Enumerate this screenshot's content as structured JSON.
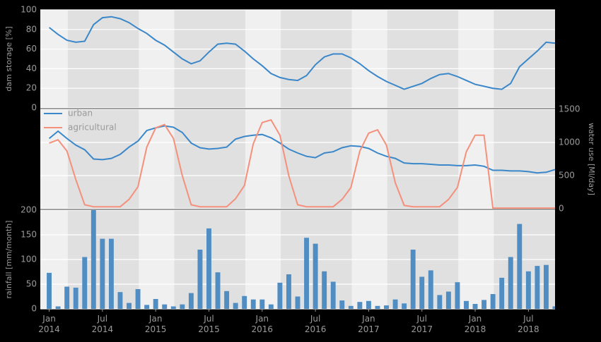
{
  "chart_data": [
    {
      "type": "line",
      "y_label": "dam storage [%]",
      "x": [
        "2014-01",
        "2014-02",
        "2014-03",
        "2014-04",
        "2014-05",
        "2014-06",
        "2014-07",
        "2014-08",
        "2014-09",
        "2014-10",
        "2014-11",
        "2014-12",
        "2015-01",
        "2015-02",
        "2015-03",
        "2015-04",
        "2015-05",
        "2015-06",
        "2015-07",
        "2015-08",
        "2015-09",
        "2015-10",
        "2015-11",
        "2015-12",
        "2016-01",
        "2016-02",
        "2016-03",
        "2016-04",
        "2016-05",
        "2016-06",
        "2016-07",
        "2016-08",
        "2016-09",
        "2016-10",
        "2016-11",
        "2016-12",
        "2017-01",
        "2017-02",
        "2017-03",
        "2017-04",
        "2017-05",
        "2017-06",
        "2017-07",
        "2017-08",
        "2017-09",
        "2017-10",
        "2017-11",
        "2017-12",
        "2018-01",
        "2018-02",
        "2018-03",
        "2018-04",
        "2018-05",
        "2018-06",
        "2018-07",
        "2018-08",
        "2018-09",
        "2018-10"
      ],
      "values": [
        82,
        75,
        69,
        67,
        68,
        85,
        92,
        93,
        91,
        87,
        81,
        76,
        69,
        64,
        57,
        50,
        45,
        48,
        57,
        65,
        66,
        65,
        58,
        50,
        43,
        35,
        31,
        29,
        28,
        33,
        44,
        52,
        55,
        55,
        51,
        45,
        38,
        32,
        27,
        23,
        19,
        22,
        25,
        30,
        34,
        35,
        32,
        28,
        24,
        22,
        20,
        19,
        25,
        42,
        50,
        58,
        67,
        66
      ],
      "color": "#3a87c9",
      "xlim": [
        "2013-12",
        "2018-10"
      ],
      "ylim": [
        0,
        100
      ],
      "yticks": [
        0,
        20,
        40,
        60,
        80,
        100
      ],
      "grid": true
    },
    {
      "type": "line",
      "y2_label": "water use [Ml/day]",
      "x": [
        "2014-01",
        "2014-02",
        "2014-03",
        "2014-04",
        "2014-05",
        "2014-06",
        "2014-07",
        "2014-08",
        "2014-09",
        "2014-10",
        "2014-11",
        "2014-12",
        "2015-01",
        "2015-02",
        "2015-03",
        "2015-04",
        "2015-05",
        "2015-06",
        "2015-07",
        "2015-08",
        "2015-09",
        "2015-10",
        "2015-11",
        "2015-12",
        "2016-01",
        "2016-02",
        "2016-03",
        "2016-04",
        "2016-05",
        "2016-06",
        "2016-07",
        "2016-08",
        "2016-09",
        "2016-10",
        "2016-11",
        "2016-12",
        "2017-01",
        "2017-02",
        "2017-03",
        "2017-04",
        "2017-05",
        "2017-06",
        "2017-07",
        "2017-08",
        "2017-09",
        "2017-10",
        "2017-11",
        "2017-12",
        "2018-01",
        "2018-02",
        "2018-03",
        "2018-04",
        "2018-05",
        "2018-06",
        "2018-07",
        "2018-08",
        "2018-09",
        "2018-10"
      ],
      "series": [
        {
          "name": "urban",
          "color": "#3a87c9",
          "axis": "y2",
          "values": [
            1060,
            1170,
            1060,
            960,
            890,
            750,
            740,
            760,
            820,
            930,
            1020,
            1180,
            1220,
            1250,
            1230,
            1150,
            990,
            920,
            900,
            910,
            930,
            1050,
            1090,
            1110,
            1120,
            1070,
            990,
            900,
            840,
            790,
            770,
            840,
            860,
            920,
            950,
            940,
            910,
            840,
            790,
            760,
            690,
            680,
            680,
            670,
            660,
            660,
            650,
            650,
            660,
            640,
            580,
            580,
            570,
            570,
            560,
            540,
            550,
            590
          ]
        },
        {
          "name": "agricultural",
          "color": "#f4907c",
          "axis": "y2",
          "values": [
            990,
            1040,
            870,
            440,
            60,
            30,
            30,
            30,
            30,
            140,
            330,
            930,
            1220,
            1270,
            1060,
            500,
            60,
            30,
            30,
            30,
            30,
            150,
            350,
            980,
            1300,
            1340,
            1110,
            500,
            60,
            30,
            30,
            30,
            30,
            140,
            320,
            870,
            1140,
            1190,
            960,
            390,
            50,
            30,
            30,
            30,
            30,
            140,
            320,
            860,
            1110,
            1110,
            10,
            10,
            10,
            10,
            10,
            10,
            10,
            10
          ]
        }
      ],
      "legend": "upper left",
      "xlim": [
        "2013-12",
        "2018-10"
      ],
      "y2lim": [
        0,
        1500
      ],
      "y2ticks": [
        0,
        500,
        1000,
        1500
      ],
      "grid": true
    },
    {
      "type": "bar",
      "y_label": "rainfall [mm/month]",
      "x": [
        "2014-01",
        "2014-02",
        "2014-03",
        "2014-04",
        "2014-05",
        "2014-06",
        "2014-07",
        "2014-08",
        "2014-09",
        "2014-10",
        "2014-11",
        "2014-12",
        "2015-01",
        "2015-02",
        "2015-03",
        "2015-04",
        "2015-05",
        "2015-06",
        "2015-07",
        "2015-08",
        "2015-09",
        "2015-10",
        "2015-11",
        "2015-12",
        "2016-01",
        "2016-02",
        "2016-03",
        "2016-04",
        "2016-05",
        "2016-06",
        "2016-07",
        "2016-08",
        "2016-09",
        "2016-10",
        "2016-11",
        "2016-12",
        "2017-01",
        "2017-02",
        "2017-03",
        "2017-04",
        "2017-05",
        "2017-06",
        "2017-07",
        "2017-08",
        "2017-09",
        "2017-10",
        "2017-11",
        "2017-12",
        "2018-01",
        "2018-02",
        "2018-03",
        "2018-04",
        "2018-05",
        "2018-06",
        "2018-07",
        "2018-08",
        "2018-09",
        "2018-10"
      ],
      "values": [
        73,
        5,
        45,
        43,
        105,
        200,
        142,
        142,
        34,
        12,
        40,
        8,
        20,
        9,
        5,
        9,
        32,
        120,
        163,
        74,
        36,
        12,
        26,
        19,
        19,
        9,
        53,
        70,
        25,
        144,
        132,
        76,
        55,
        17,
        6,
        14,
        16,
        6,
        7,
        19,
        11,
        120,
        65,
        78,
        28,
        35,
        54,
        16,
        10,
        18,
        30,
        63,
        105,
        172,
        76,
        87,
        89,
        5
      ],
      "color": "#4f8dc2",
      "xlim": [
        "2013-12",
        "2018-10"
      ],
      "xticks": [
        {
          "value": "2014-01",
          "label": "Jan\n2014"
        },
        {
          "value": "2014-07",
          "label": "Jul\n2014"
        },
        {
          "value": "2015-01",
          "label": "Jan\n2015"
        },
        {
          "value": "2015-07",
          "label": "Jul\n2015"
        },
        {
          "value": "2016-01",
          "label": "Jan\n2016"
        },
        {
          "value": "2016-07",
          "label": "Jul\n2016"
        },
        {
          "value": "2017-01",
          "label": "Jan\n2017"
        },
        {
          "value": "2017-07",
          "label": "Jul\n2017"
        },
        {
          "value": "2018-01",
          "label": "Jan\n2018"
        },
        {
          "value": "2018-07",
          "label": "Jul\n2018"
        }
      ],
      "ylim": [
        0,
        200
      ],
      "yticks": [
        0,
        50,
        100,
        150,
        200
      ],
      "grid": true
    }
  ]
}
